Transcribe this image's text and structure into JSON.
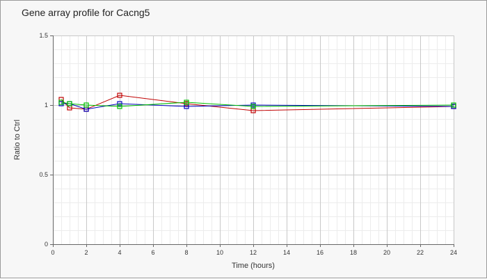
{
  "chart_data": {
    "type": "line",
    "title": "Gene array profile for Cacng5",
    "xlabel": "Time (hours)",
    "ylabel": "Ratio to Ctrl",
    "xlim": [
      0,
      24
    ],
    "ylim": [
      0,
      1.5
    ],
    "x_ticks": [
      0,
      2,
      4,
      6,
      8,
      10,
      12,
      14,
      16,
      18,
      20,
      22,
      24
    ],
    "y_ticks": [
      0,
      0.5,
      1,
      1.5
    ],
    "x_tick_labels": [
      "0",
      "2",
      "4",
      "6",
      "8",
      "10",
      "12",
      "14",
      "16",
      "18",
      "20",
      "22",
      "24"
    ],
    "y_tick_labels": [
      "0",
      "0.5",
      "1",
      "1.5"
    ],
    "grid": true,
    "legend": "none",
    "series": [
      {
        "color": "#c00000",
        "x": [
          0.5,
          1,
          2,
          4,
          8,
          12,
          24
        ],
        "y": [
          1.04,
          0.98,
          0.97,
          1.07,
          1.01,
          0.96,
          0.99
        ]
      },
      {
        "color": "#0000c0",
        "x": [
          0.5,
          1,
          2,
          4,
          8,
          12,
          24
        ],
        "y": [
          1.01,
          1.01,
          0.97,
          1.01,
          0.99,
          1.0,
          0.99
        ]
      },
      {
        "color": "#00c000",
        "x": [
          0.5,
          1,
          2,
          4,
          8,
          12,
          24
        ],
        "y": [
          1.02,
          1.01,
          1.0,
          0.99,
          1.02,
          0.99,
          1.0
        ]
      }
    ]
  }
}
